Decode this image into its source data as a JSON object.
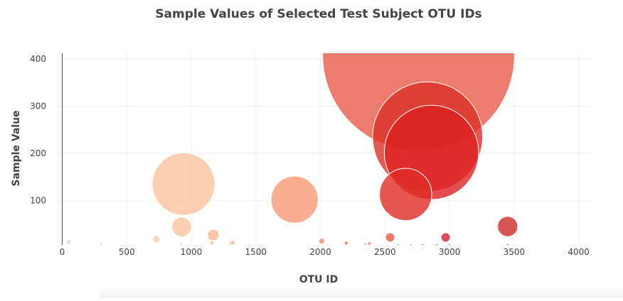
{
  "chart_data": {
    "type": "scatter",
    "title": "Sample Values of Selected Test Subject OTU IDs",
    "xlabel": "OTU ID",
    "ylabel": "Sample Value",
    "xlim": [
      -30,
      4090
    ],
    "ylim": [
      6,
      412
    ],
    "xticks": [
      0,
      500,
      1000,
      1500,
      2000,
      2500,
      3000,
      3500,
      4000
    ],
    "xtick_labels": [
      "0",
      "500",
      "1000",
      "1500",
      "2000",
      "2500",
      "3000",
      "3500",
      "4000"
    ],
    "yticks": [
      100,
      200,
      300,
      400
    ],
    "ytick_labels": [
      "100",
      "200",
      "300",
      "400"
    ],
    "grid": true,
    "marker_color_encodes": "otu_id",
    "marker_size_encodes": "sample_value",
    "points": [
      {
        "x": 50,
        "y": 12,
        "color": "#d9d9d9"
      },
      {
        "x": 300,
        "y": 8,
        "color": "#fdd9b6"
      },
      {
        "x": 730,
        "y": 18,
        "color": "#fdcba6"
      },
      {
        "x": 920,
        "y": 8,
        "color": "#fdc7a0"
      },
      {
        "x": 940,
        "y": 135,
        "color": "#fdc39d"
      },
      {
        "x": 925,
        "y": 44,
        "color": "#fdc39d"
      },
      {
        "x": 1170,
        "y": 27,
        "color": "#fcb990"
      },
      {
        "x": 1160,
        "y": 10,
        "color": "#fcb990"
      },
      {
        "x": 1320,
        "y": 11,
        "color": "#fcb288"
      },
      {
        "x": 1300,
        "y": 7,
        "color": "#fcb288"
      },
      {
        "x": 1450,
        "y": 6,
        "color": "#fca982"
      },
      {
        "x": 1800,
        "y": 102,
        "color": "#f89a77"
      },
      {
        "x": 2010,
        "y": 14,
        "color": "#f4896b"
      },
      {
        "x": 2200,
        "y": 10,
        "color": "#ef7c61"
      },
      {
        "x": 2350,
        "y": 7,
        "color": "#ee7a60"
      },
      {
        "x": 2380,
        "y": 9,
        "color": "#ec735a"
      },
      {
        "x": 2540,
        "y": 22,
        "color": "#e85a47"
      },
      {
        "x": 2760,
        "y": 408,
        "color": "#e75d4a"
      },
      {
        "x": 2830,
        "y": 235,
        "color": "#dd2f26"
      },
      {
        "x": 2860,
        "y": 202,
        "color": "#dc2222"
      },
      {
        "x": 2660,
        "y": 113,
        "color": "#de2c26"
      },
      {
        "x": 2970,
        "y": 22,
        "color": "#d52029"
      },
      {
        "x": 3450,
        "y": 45,
        "color": "#cc2a2a"
      },
      {
        "x": 2600,
        "y": 6,
        "color": "#e65a47"
      },
      {
        "x": 2700,
        "y": 6,
        "color": "#e5533f"
      },
      {
        "x": 2790,
        "y": 6,
        "color": "#e24a3a"
      },
      {
        "x": 2900,
        "y": 6,
        "color": "#df3c32"
      },
      {
        "x": 3000,
        "y": 6,
        "color": "#dc3a30"
      },
      {
        "x": 3450,
        "y": 6,
        "color": "#c81e22"
      }
    ]
  }
}
